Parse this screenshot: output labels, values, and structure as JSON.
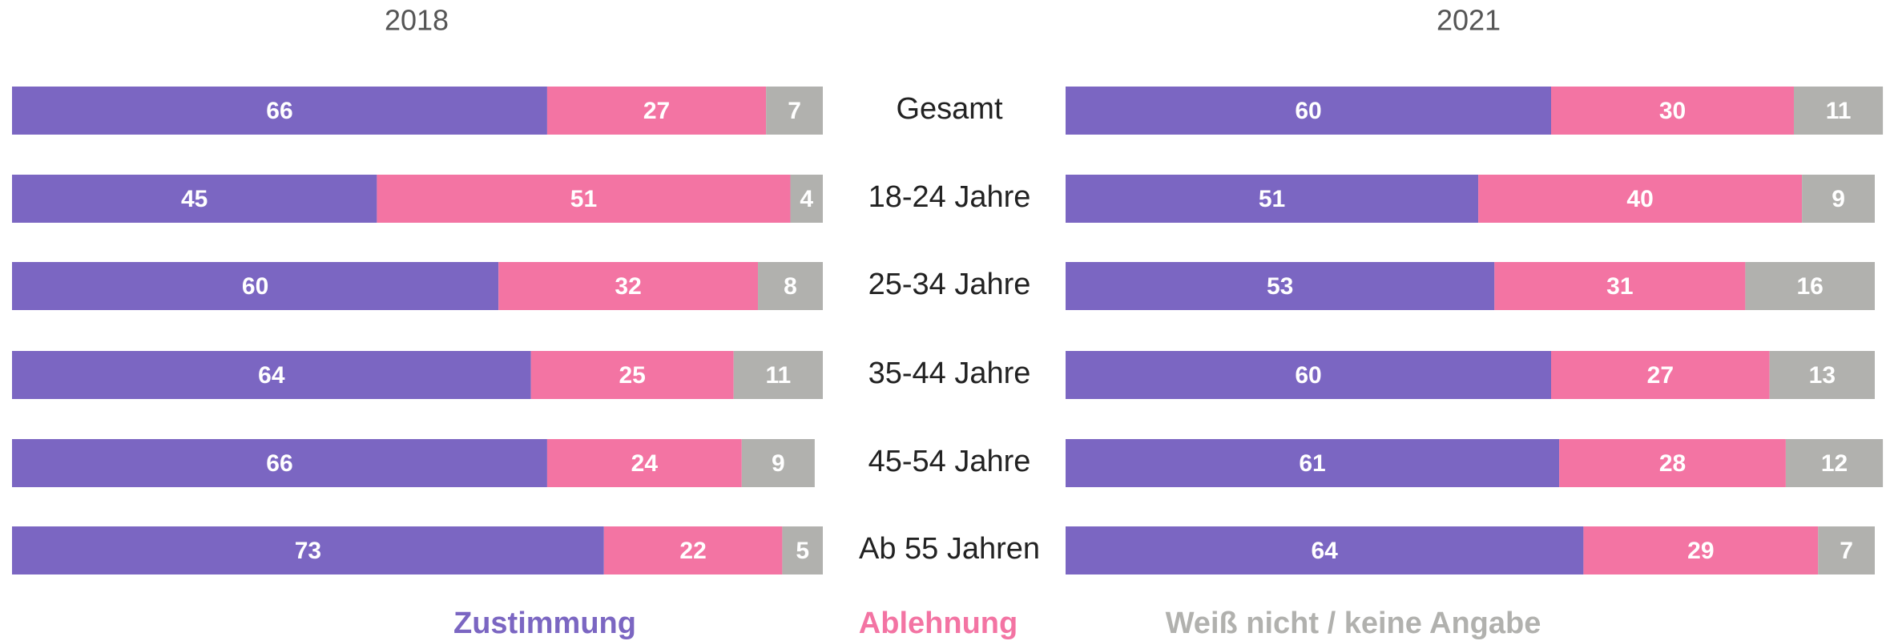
{
  "chart_data": [
    {
      "type": "bar",
      "title": "2018",
      "stacked": true,
      "orientation": "horizontal",
      "categories": [
        "Gesamt",
        "18-24 Jahre",
        "25-34 Jahre",
        "35-44 Jahre",
        "45-54 Jahre",
        "Ab 55 Jahren"
      ],
      "xlim": [
        0,
        100
      ],
      "series": [
        {
          "name": "Zustimmung",
          "color": "#7b66c2",
          "values": [
            66,
            45,
            60,
            64,
            66,
            73
          ]
        },
        {
          "name": "Ablehnung",
          "color": "#f374a3",
          "values": [
            27,
            51,
            32,
            25,
            24,
            22
          ]
        },
        {
          "name": "Weiß nicht / keine Angabe",
          "color": "#b1b1ae",
          "values": [
            7,
            4,
            8,
            11,
            9,
            5
          ]
        }
      ]
    },
    {
      "type": "bar",
      "title": "2021",
      "stacked": true,
      "orientation": "horizontal",
      "xlim": [
        0,
        100
      ],
      "series": [
        {
          "color": "#7b66c2",
          "values": [
            60,
            51,
            53,
            60,
            61,
            64
          ]
        },
        {
          "color": "#f374a3",
          "values": [
            30,
            40,
            31,
            27,
            28,
            29
          ]
        },
        {
          "color": "#b1b1ae",
          "values": [
            11,
            9,
            16,
            13,
            12,
            7
          ]
        }
      ]
    }
  ]
}
